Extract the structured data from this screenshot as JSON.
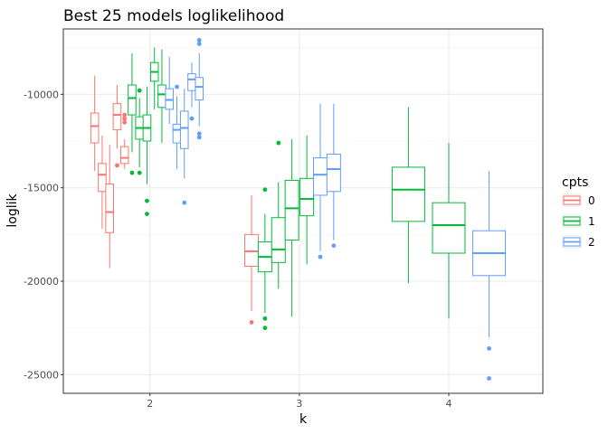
{
  "chart_data": {
    "type": "boxplot",
    "title": "Best 25 models loglikelihood",
    "xlabel": "k",
    "ylabel": "loglik",
    "ylim": [
      -26000,
      -6500
    ],
    "yticks": [
      -25000,
      -20000,
      -15000,
      -10000
    ],
    "ytick_labels": [
      "-25000",
      "-20000",
      "-15000",
      "-10000"
    ],
    "categories": [
      "2",
      "3",
      "4"
    ],
    "grid": true,
    "legend": {
      "title": "cpts",
      "position": "right",
      "entries": [
        {
          "label": "0",
          "color": "#F8766D"
        },
        {
          "label": "1",
          "color": "#00BA38"
        },
        {
          "label": "2",
          "color": "#619CFF"
        }
      ]
    },
    "boxes": [
      {
        "k": "2",
        "cpts": "0",
        "color": "#F8766D",
        "x": 1.63,
        "whisker_low": -14100,
        "q1": -12600,
        "median": -11700,
        "q3": -11000,
        "whisker_high": -9000,
        "outliers": []
      },
      {
        "k": "2",
        "cpts": "0",
        "color": "#F8766D",
        "x": 1.68,
        "whisker_low": -17200,
        "q1": -15200,
        "median": -14300,
        "q3": -13700,
        "whisker_high": -12200,
        "outliers": []
      },
      {
        "k": "2",
        "cpts": "0",
        "color": "#F8766D",
        "x": 1.73,
        "whisker_low": -19300,
        "q1": -17400,
        "median": -16300,
        "q3": -14800,
        "whisker_high": -12700,
        "outliers": []
      },
      {
        "k": "2",
        "cpts": "0",
        "color": "#F8766D",
        "x": 1.78,
        "whisker_low": -12900,
        "q1": -11900,
        "median": -11100,
        "q3": -10500,
        "whisker_high": -9500,
        "outliers": [
          -13800
        ]
      },
      {
        "k": "2",
        "cpts": "0",
        "color": "#F8766D",
        "x": 1.83,
        "whisker_low": -14000,
        "q1": -13700,
        "median": -13400,
        "q3": -12800,
        "whisker_high": -12400,
        "outliers": [
          -11100,
          -11300,
          -11500
        ]
      },
      {
        "k": "2",
        "cpts": "1",
        "color": "#00BA38",
        "x": 1.88,
        "whisker_low": -13100,
        "q1": -11100,
        "median": -10200,
        "q3": -9500,
        "whisker_high": -7800,
        "outliers": [
          -14200
        ]
      },
      {
        "k": "2",
        "cpts": "1",
        "color": "#00BA38",
        "x": 1.93,
        "whisker_low": -13900,
        "q1": -12400,
        "median": -11800,
        "q3": -11200,
        "whisker_high": -10200,
        "outliers": [
          -9800,
          -14200
        ]
      },
      {
        "k": "2",
        "cpts": "1",
        "color": "#00BA38",
        "x": 1.98,
        "whisker_low": -14800,
        "q1": -12500,
        "median": -11800,
        "q3": -11100,
        "whisker_high": -9600,
        "outliers": [
          -15700,
          -16400
        ]
      },
      {
        "k": "2",
        "cpts": "1",
        "color": "#00BA38",
        "x": 2.03,
        "whisker_low": -10800,
        "q1": -9300,
        "median": -8800,
        "q3": -8300,
        "whisker_high": -7500,
        "outliers": []
      },
      {
        "k": "2",
        "cpts": "1",
        "color": "#00BA38",
        "x": 2.08,
        "whisker_low": -12600,
        "q1": -10700,
        "median": -10000,
        "q3": -9500,
        "whisker_high": -7600,
        "outliers": []
      },
      {
        "k": "2",
        "cpts": "2",
        "color": "#619CFF",
        "x": 2.13,
        "whisker_low": -11600,
        "q1": -10800,
        "median": -10300,
        "q3": -9700,
        "whisker_high": -8000,
        "outliers": []
      },
      {
        "k": "2",
        "cpts": "2",
        "color": "#619CFF",
        "x": 2.18,
        "whisker_low": -14000,
        "q1": -12600,
        "median": -11900,
        "q3": -11600,
        "whisker_high": -10100,
        "outliers": [
          -9600
        ]
      },
      {
        "k": "2",
        "cpts": "2",
        "color": "#619CFF",
        "x": 2.23,
        "whisker_low": -14500,
        "q1": -12900,
        "median": -11800,
        "q3": -10900,
        "whisker_high": -9700,
        "outliers": [
          -15800
        ]
      },
      {
        "k": "2",
        "cpts": "2",
        "color": "#619CFF",
        "x": 2.28,
        "whisker_low": -10700,
        "q1": -9800,
        "median": -9200,
        "q3": -8900,
        "whisker_high": -8300,
        "outliers": [
          -11300
        ]
      },
      {
        "k": "2",
        "cpts": "2",
        "color": "#619CFF",
        "x": 2.33,
        "whisker_low": -11700,
        "q1": -10300,
        "median": -9600,
        "q3": -9100,
        "whisker_high": -7800,
        "outliers": [
          -7100,
          -7300,
          -12100,
          -12300
        ]
      },
      {
        "k": "3",
        "cpts": "0",
        "color": "#F8766D",
        "x": 2.68,
        "whisker_low": -21600,
        "q1": -19200,
        "median": -18400,
        "q3": -17500,
        "whisker_high": -15400,
        "outliers": [
          -22200
        ]
      },
      {
        "k": "3",
        "cpts": "1",
        "color": "#00BA38",
        "x": 2.77,
        "whisker_low": -21700,
        "q1": -19500,
        "median": -18700,
        "q3": -17900,
        "whisker_high": -16400,
        "outliers": [
          -15100,
          -22000,
          -22500
        ]
      },
      {
        "k": "3",
        "cpts": "1",
        "color": "#00BA38",
        "x": 2.86,
        "whisker_low": -20400,
        "q1": -19000,
        "median": -18300,
        "q3": -16600,
        "whisker_high": -14700,
        "outliers": [
          -12600
        ]
      },
      {
        "k": "3",
        "cpts": "1",
        "color": "#00BA38",
        "x": 2.95,
        "whisker_low": -21900,
        "q1": -17800,
        "median": -16100,
        "q3": -14600,
        "whisker_high": -12400,
        "outliers": []
      },
      {
        "k": "3",
        "cpts": "1",
        "color": "#00BA38",
        "x": 3.05,
        "whisker_low": -19100,
        "q1": -16500,
        "median": -15600,
        "q3": -14500,
        "whisker_high": -12200,
        "outliers": []
      },
      {
        "k": "3",
        "cpts": "2",
        "color": "#619CFF",
        "x": 3.14,
        "whisker_low": -18400,
        "q1": -15400,
        "median": -14300,
        "q3": -13400,
        "whisker_high": -10500,
        "outliers": [
          -18700
        ]
      },
      {
        "k": "3",
        "cpts": "2",
        "color": "#619CFF",
        "x": 3.23,
        "whisker_low": -17800,
        "q1": -15200,
        "median": -14000,
        "q3": -13200,
        "whisker_high": -10500,
        "outliers": [
          -18100
        ]
      },
      {
        "k": "4",
        "cpts": "1",
        "color": "#00BA38",
        "x": 3.73,
        "whisker_low": -20100,
        "q1": -16800,
        "median": -15100,
        "q3": -13900,
        "whisker_high": -10700,
        "outliers": []
      },
      {
        "k": "4",
        "cpts": "1",
        "color": "#00BA38",
        "x": 4.0,
        "whisker_low": -22000,
        "q1": -18500,
        "median": -17000,
        "q3": -15800,
        "whisker_high": -12600,
        "outliers": []
      },
      {
        "k": "4",
        "cpts": "2",
        "color": "#619CFF",
        "x": 4.27,
        "whisker_low": -23000,
        "q1": -19700,
        "median": -18500,
        "q3": -17300,
        "whisker_high": -14100,
        "outliers": [
          -23600,
          -25200
        ]
      }
    ]
  }
}
